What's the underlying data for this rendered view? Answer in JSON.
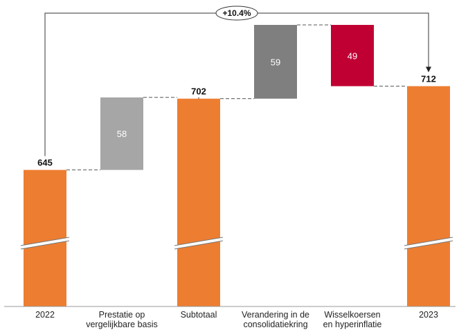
{
  "chart_data": {
    "type": "waterfall",
    "categories": [
      [
        "2022"
      ],
      [
        "Prestatie op",
        "vergelijkbare basis"
      ],
      [
        "Subtotaal"
      ],
      [
        "Verandering in de",
        "consolidatiekring"
      ],
      [
        "Wisselkoersen",
        "en hyperinflatie"
      ],
      [
        "2023"
      ]
    ],
    "steps": [
      {
        "kind": "total",
        "value": 645,
        "label": "645",
        "color": "#ED7D31"
      },
      {
        "kind": "increase",
        "value": 58,
        "label": "58",
        "color": "#A6A6A6"
      },
      {
        "kind": "total",
        "value": 702,
        "label": "702",
        "color": "#ED7D31"
      },
      {
        "kind": "increase",
        "value": 59,
        "label": "59",
        "color": "#7F7F7F"
      },
      {
        "kind": "decrease",
        "value": 49,
        "label": "49",
        "color": "#C00033"
      },
      {
        "kind": "total",
        "value": 712,
        "label": "712",
        "color": "#ED7D31"
      }
    ],
    "axis_break": true,
    "change_annotation": {
      "text": "+10.4%",
      "from": "2022",
      "to": "2023"
    },
    "connectors": "dashed"
  }
}
